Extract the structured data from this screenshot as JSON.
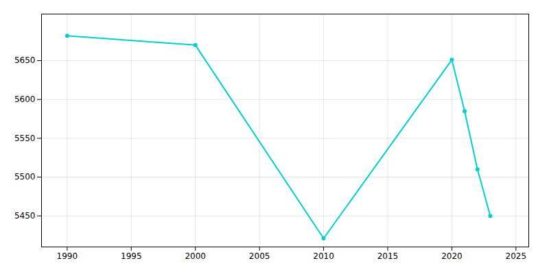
{
  "chart_data": {
    "type": "line",
    "x": [
      1990,
      2000,
      2010,
      2020,
      2021,
      2022,
      2023
    ],
    "values": [
      5682,
      5670,
      5421,
      5651,
      5585,
      5510,
      5450
    ],
    "color": "#00CED1",
    "marker": "circle",
    "xlim": [
      1988,
      2026
    ],
    "ylim": [
      5410,
      5710
    ],
    "xticks": [
      1990,
      1995,
      2000,
      2005,
      2010,
      2015,
      2020,
      2025
    ],
    "yticks": [
      5450,
      5500,
      5550,
      5600,
      5650
    ],
    "grid": true
  }
}
